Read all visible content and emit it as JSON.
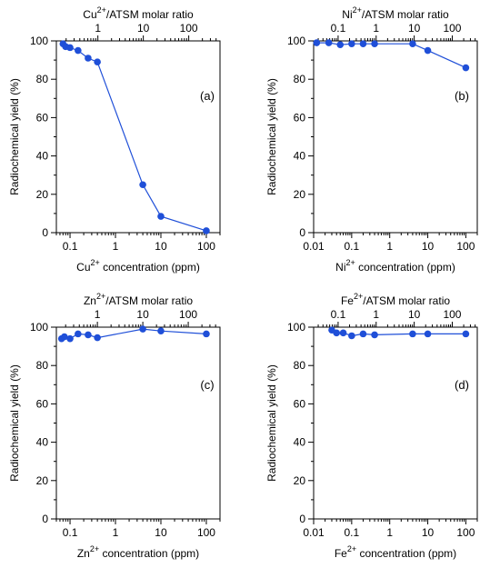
{
  "colors": {
    "series": "#1f4fd8",
    "axis": "#000000"
  },
  "chart_data": [
    {
      "type": "line",
      "panel_label": "(a)",
      "xscale": "log",
      "ylabel": "Radiochemical yield (%)",
      "xlabel": {
        "ion": "Cu",
        "charge": "2+",
        "text": " concentration (ppm)"
      },
      "top_label": {
        "ion": "Cu",
        "charge": "2+",
        "text": "/ATSM molar ratio"
      },
      "xlim": [
        0.05,
        200
      ],
      "ylim": [
        0,
        100
      ],
      "x_ticks": [
        {
          "v": 0.1,
          "label": "0.1"
        },
        {
          "v": 1,
          "label": "1"
        },
        {
          "v": 10,
          "label": "10"
        },
        {
          "v": 100,
          "label": "100"
        }
      ],
      "top_ticks": [
        {
          "v": 0.41,
          "label": "1"
        },
        {
          "v": 4.1,
          "label": "10"
        },
        {
          "v": 41,
          "label": "100"
        }
      ],
      "y_ticks": [
        {
          "v": 0,
          "label": "0"
        },
        {
          "v": 20,
          "label": "20"
        },
        {
          "v": 40,
          "label": "40"
        },
        {
          "v": 60,
          "label": "60"
        },
        {
          "v": 80,
          "label": "80"
        },
        {
          "v": 100,
          "label": "100"
        }
      ],
      "x": [
        0.07,
        0.08,
        0.1,
        0.15,
        0.25,
        0.4,
        4,
        10,
        100
      ],
      "y": [
        98.5,
        97,
        96.5,
        95,
        91,
        89,
        25,
        8.5,
        1
      ]
    },
    {
      "type": "line",
      "panel_label": "(b)",
      "xscale": "log",
      "ylabel": "Radiochemical yield (%)",
      "xlabel": {
        "ion": "Ni",
        "charge": "2+",
        "text": " concentration (ppm)"
      },
      "top_label": {
        "ion": "Ni",
        "charge": "2+",
        "text": "/ATSM molar ratio"
      },
      "xlim": [
        0.01,
        200
      ],
      "ylim": [
        0,
        100
      ],
      "x_ticks": [
        {
          "v": 0.01,
          "label": "0.01"
        },
        {
          "v": 0.1,
          "label": "0.1"
        },
        {
          "v": 1,
          "label": "1"
        },
        {
          "v": 10,
          "label": "10"
        },
        {
          "v": 100,
          "label": "100"
        }
      ],
      "top_ticks": [
        {
          "v": 0.044,
          "label": "0.1"
        },
        {
          "v": 0.44,
          "label": "1"
        },
        {
          "v": 4.4,
          "label": "10"
        },
        {
          "v": 44,
          "label": "100"
        }
      ],
      "y_ticks": [
        {
          "v": 0,
          "label": "0"
        },
        {
          "v": 20,
          "label": "20"
        },
        {
          "v": 40,
          "label": "40"
        },
        {
          "v": 60,
          "label": "60"
        },
        {
          "v": 80,
          "label": "80"
        },
        {
          "v": 100,
          "label": "100"
        }
      ],
      "x": [
        0.012,
        0.025,
        0.05,
        0.1,
        0.2,
        0.4,
        4,
        10,
        100
      ],
      "y": [
        99,
        99,
        98,
        98.5,
        98.5,
        98.5,
        98.5,
        95,
        86
      ]
    },
    {
      "type": "line",
      "panel_label": "(c)",
      "xscale": "log",
      "ylabel": "Radiochemical yield (%)",
      "xlabel": {
        "ion": "Zn",
        "charge": "2+",
        "text": " concentration (ppm)"
      },
      "top_label": {
        "ion": "Zn",
        "charge": "2+",
        "text": "/ATSM molar ratio"
      },
      "xlim": [
        0.05,
        200
      ],
      "ylim": [
        0,
        100
      ],
      "x_ticks": [
        {
          "v": 0.1,
          "label": "0.1"
        },
        {
          "v": 1,
          "label": "1"
        },
        {
          "v": 10,
          "label": "10"
        },
        {
          "v": 100,
          "label": "100"
        }
      ],
      "top_ticks": [
        {
          "v": 0.4,
          "label": "1"
        },
        {
          "v": 4,
          "label": "10"
        },
        {
          "v": 40,
          "label": "100"
        }
      ],
      "y_ticks": [
        {
          "v": 0,
          "label": "0"
        },
        {
          "v": 20,
          "label": "20"
        },
        {
          "v": 40,
          "label": "40"
        },
        {
          "v": 60,
          "label": "60"
        },
        {
          "v": 80,
          "label": "80"
        },
        {
          "v": 100,
          "label": "100"
        }
      ],
      "x": [
        0.065,
        0.075,
        0.1,
        0.15,
        0.25,
        0.4,
        4,
        10,
        100
      ],
      "y": [
        94,
        95,
        94,
        96.5,
        96,
        94.5,
        99,
        98,
        96.5
      ]
    },
    {
      "type": "line",
      "panel_label": "(d)",
      "xscale": "log",
      "ylabel": "Radiochemical yield (%)",
      "xlabel": {
        "ion": "Fe",
        "charge": "2+",
        "text": " concentration (ppm)"
      },
      "top_label": {
        "ion": "Fe",
        "charge": "2+",
        "text": "/ATSM molar ratio"
      },
      "xlim": [
        0.01,
        200
      ],
      "ylim": [
        0,
        100
      ],
      "x_ticks": [
        {
          "v": 0.01,
          "label": "0.01"
        },
        {
          "v": 0.1,
          "label": "0.1"
        },
        {
          "v": 1,
          "label": "1"
        },
        {
          "v": 10,
          "label": "10"
        },
        {
          "v": 100,
          "label": "100"
        }
      ],
      "top_ticks": [
        {
          "v": 0.044,
          "label": "0.1"
        },
        {
          "v": 0.44,
          "label": "1"
        },
        {
          "v": 4.4,
          "label": "10"
        },
        {
          "v": 44,
          "label": "100"
        }
      ],
      "y_ticks": [
        {
          "v": 0,
          "label": "0"
        },
        {
          "v": 20,
          "label": "20"
        },
        {
          "v": 40,
          "label": "40"
        },
        {
          "v": 60,
          "label": "60"
        },
        {
          "v": 80,
          "label": "80"
        },
        {
          "v": 100,
          "label": "100"
        }
      ],
      "x": [
        0.03,
        0.04,
        0.06,
        0.1,
        0.2,
        0.4,
        4,
        10,
        100
      ],
      "y": [
        98.5,
        97,
        97,
        95.5,
        96.5,
        96,
        96.5,
        96.5,
        96.5
      ]
    }
  ]
}
